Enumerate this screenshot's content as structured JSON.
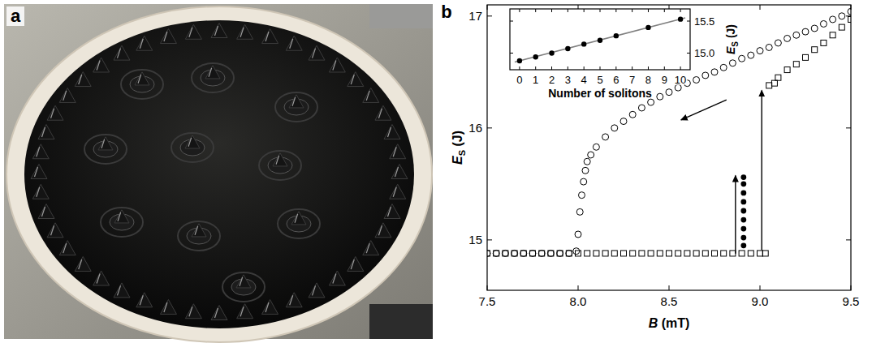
{
  "panel_labels": [
    "a",
    "b"
  ],
  "chart_data": [
    {
      "type": "scatter",
      "xlabel": "B (mT)",
      "ylabel": "ES (J)",
      "xlim": [
        7.5,
        9.5
      ],
      "xticks": [
        7.5,
        {
          "value": 8,
          "label": "8.0"
        },
        8.5,
        {
          "value": 9,
          "label": "9.0"
        },
        9.5
      ],
      "ylim": [
        14.55,
        17.1
      ],
      "yticks": [
        15,
        16,
        17
      ],
      "grid": false,
      "series": [
        {
          "marker": "circle",
          "color": "#000000",
          "x": [
            9.5,
            9.45,
            9.4,
            9.35,
            9.3,
            9.25,
            9.2,
            9.15,
            9.1,
            9.05,
            9.0,
            8.95,
            8.9,
            8.85,
            8.8,
            8.75,
            8.7,
            8.65,
            8.6,
            8.55,
            8.5,
            8.45,
            8.4,
            8.35,
            8.3,
            8.25,
            8.2,
            8.15,
            8.1,
            8.07,
            8.05,
            8.04,
            8.03,
            8.02,
            8.01,
            8.0,
            7.99,
            7.95,
            7.9,
            7.85,
            7.8,
            7.75,
            7.7,
            7.65,
            7.6,
            7.55,
            7.5
          ],
          "values": [
            17.04,
            17.0,
            16.97,
            16.93,
            16.89,
            16.86,
            16.83,
            16.8,
            16.76,
            16.72,
            16.69,
            16.65,
            16.62,
            16.58,
            16.54,
            16.5,
            16.47,
            16.43,
            16.4,
            16.36,
            16.32,
            16.28,
            16.23,
            16.18,
            16.12,
            16.06,
            16.0,
            15.92,
            15.83,
            15.76,
            15.7,
            15.62,
            15.52,
            15.4,
            15.25,
            15.05,
            14.9,
            14.88,
            14.88,
            14.88,
            14.88,
            14.88,
            14.88,
            14.88,
            14.88,
            14.88,
            14.88
          ]
        },
        {
          "marker": "square",
          "color": "#000000",
          "x": [
            7.5,
            7.55,
            7.6,
            7.65,
            7.7,
            7.75,
            7.8,
            7.85,
            7.9,
            7.95,
            8.0,
            8.05,
            8.1,
            8.15,
            8.2,
            8.25,
            8.3,
            8.35,
            8.4,
            8.45,
            8.5,
            8.55,
            8.6,
            8.65,
            8.7,
            8.75,
            8.8,
            8.85,
            8.9,
            8.95,
            9.0,
            9.03,
            9.05,
            9.08,
            9.1,
            9.15,
            9.2,
            9.25,
            9.3,
            9.35,
            9.4,
            9.45,
            9.5
          ],
          "values": [
            14.88,
            14.88,
            14.88,
            14.88,
            14.88,
            14.88,
            14.88,
            14.88,
            14.88,
            14.88,
            14.88,
            14.88,
            14.88,
            14.88,
            14.88,
            14.88,
            14.88,
            14.88,
            14.88,
            14.88,
            14.88,
            14.88,
            14.88,
            14.88,
            14.88,
            14.88,
            14.88,
            14.88,
            14.88,
            14.88,
            14.88,
            14.88,
            16.38,
            16.4,
            16.45,
            16.52,
            16.57,
            16.63,
            16.7,
            16.76,
            16.83,
            16.9,
            16.97
          ]
        },
        {
          "marker": "disc",
          "color": "#000000",
          "x": [
            8.91,
            8.91,
            8.91,
            8.91,
            8.91,
            8.91,
            8.91,
            8.91,
            8.91
          ],
          "values": [
            14.95,
            15.02,
            15.1,
            15.18,
            15.26,
            15.34,
            15.42,
            15.5,
            15.56
          ]
        }
      ]
    },
    {
      "type": "scatter",
      "xlabel": "Number of solitons",
      "ylabel": "ES (J)",
      "xlim": [
        -0.6,
        10.6
      ],
      "xticks": [
        0,
        1,
        2,
        3,
        4,
        5,
        6,
        7,
        8,
        9,
        10
      ],
      "ylim": [
        14.74,
        15.69
      ],
      "yticks": [
        {
          "value": 15,
          "label": "15.0"
        },
        15.5
      ],
      "grid": false,
      "series": [
        {
          "type": "line",
          "color": "#808080",
          "x": [
            -0.3,
            10.3
          ],
          "values": [
            14.86,
            15.55
          ]
        },
        {
          "marker": "disc",
          "color": "#000000",
          "x": [
            0,
            1,
            2,
            3,
            4,
            5,
            6,
            8,
            10
          ],
          "values": [
            14.88,
            14.94,
            15.0,
            15.07,
            15.14,
            15.2,
            15.27,
            15.4,
            15.53
          ]
        }
      ]
    }
  ]
}
